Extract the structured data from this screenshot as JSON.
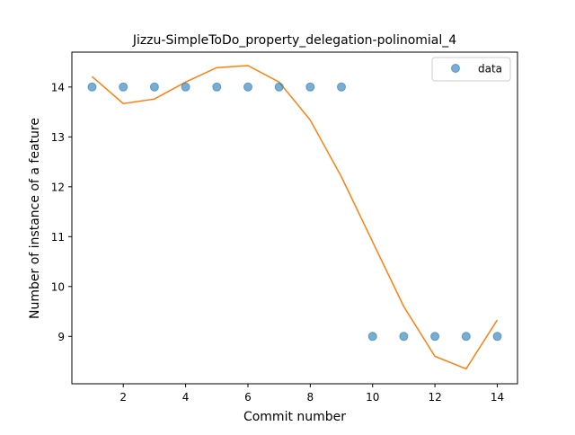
{
  "chart_data": {
    "type": "line",
    "title": "Jizzu-SimpleToDo_property_delegation-polinomial_4",
    "xlabel": "Commit number",
    "ylabel": "Number of instance of a feature",
    "xlim": [
      0.35,
      14.65
    ],
    "ylim": [
      8.05,
      14.7
    ],
    "xticks": [
      2,
      4,
      6,
      8,
      10,
      12,
      14
    ],
    "yticks": [
      9,
      10,
      11,
      12,
      13,
      14
    ],
    "grid": false,
    "legend_position": "upper-right",
    "series": [
      {
        "name": "data",
        "kind": "scatter",
        "color": "#1f77b4",
        "x": [
          1,
          2,
          3,
          4,
          5,
          6,
          7,
          8,
          9,
          10,
          11,
          12,
          13,
          14
        ],
        "y": [
          14,
          14,
          14,
          14,
          14,
          14,
          14,
          14,
          14,
          9,
          9,
          9,
          9,
          9
        ]
      },
      {
        "kind": "line",
        "color": "#ff7f0e",
        "x": [
          1,
          2,
          3,
          4,
          5,
          6,
          7,
          8,
          9,
          10,
          11,
          12,
          13,
          14
        ],
        "y": [
          14.21,
          13.67,
          13.76,
          14.1,
          14.39,
          14.43,
          14.1,
          13.34,
          12.2,
          10.9,
          9.6,
          8.6,
          8.35,
          9.33
        ]
      }
    ]
  }
}
